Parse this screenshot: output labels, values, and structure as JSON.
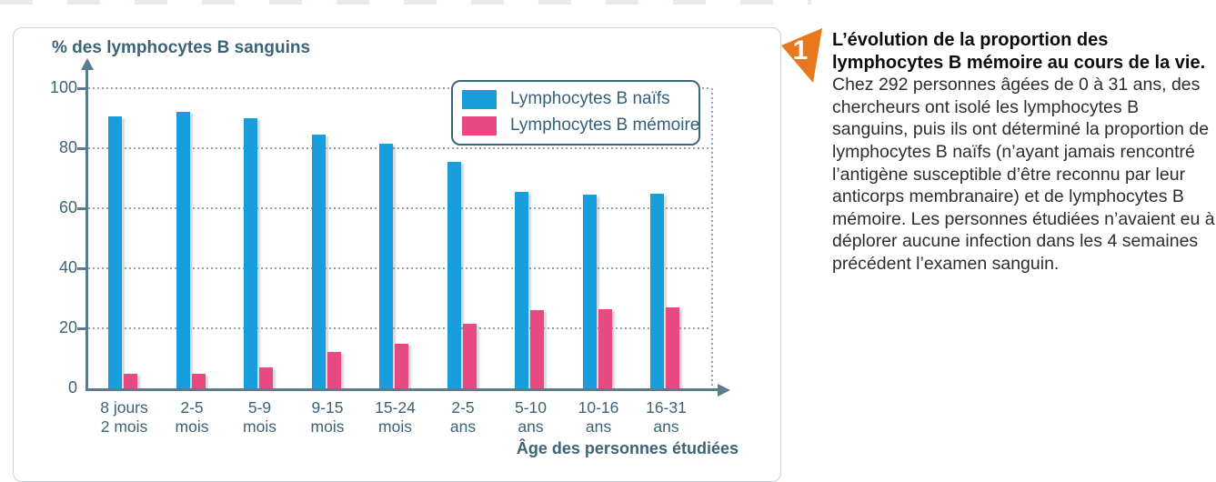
{
  "figure": {
    "badge": "1",
    "note_title": "L’évolution de la proportion des lymphocytes B mémoire au cours de la vie.",
    "note_body": "Chez 292 personnes âgées de 0 à 31 ans, des chercheurs ont isolé les lymphocytes B sanguins, puis ils ont déterminé la proportion de lymphocytes B naïfs (n’ayant jamais rencontré l’antigène susceptible d’être reconnu par leur anticorps membranaire) et de lymphocytes B mémoire. Les personnes étudiées n’avaient eu à déplorer aucune infection dans les 4 semaines précédent l’examen sanguin."
  },
  "chart_data": {
    "type": "bar",
    "title": "% des lymphocytes B sanguins",
    "ylabel": "% des lymphocytes B sanguins",
    "xlabel": "Âge des personnes étudiées",
    "categories": [
      "8 jours\n2 mois",
      "2-5\nmois",
      "5-9\nmois",
      "9-15\nmois",
      "15-24\nmois",
      "2-5\nans",
      "5-10\nans",
      "10-16\nans",
      "16-31\nans"
    ],
    "series": [
      {
        "name": "Lymphocytes B naïfs",
        "color": "#189fdb",
        "values": [
          90.5,
          92,
          90,
          84.5,
          81.5,
          75.5,
          65.5,
          64.5,
          65
        ]
      },
      {
        "name": "Lymphocytes B mémoire",
        "color": "#e74980",
        "values": [
          5,
          5,
          7,
          12,
          15,
          21.5,
          26,
          26.5,
          27
        ]
      }
    ],
    "ylim": [
      0,
      100
    ],
    "yticks": [
      0,
      20,
      40,
      60,
      80,
      100
    ],
    "grid": "horizontal-dotted",
    "legend_position": "top-right"
  },
  "colors": {
    "accent_orange": "#e8781d",
    "axis": "#5a7c8e",
    "chart_text": "#3d6376",
    "naive_blue": "#189fdb",
    "memory_pink": "#e74980",
    "panel_border": "#ccd1d6"
  }
}
